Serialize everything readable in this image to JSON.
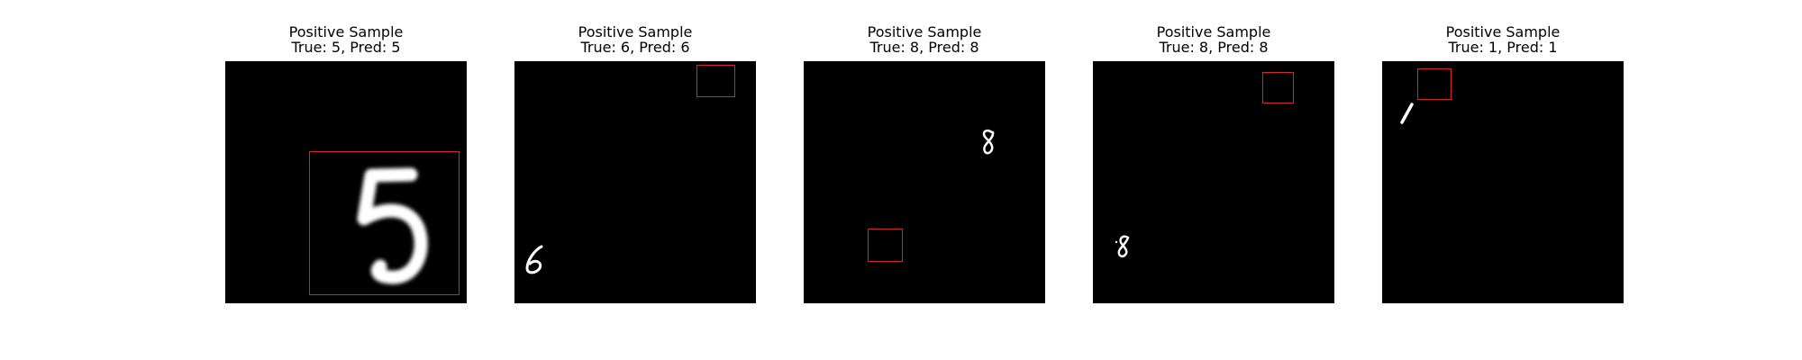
{
  "panels": [
    {
      "title": "Positive Sample",
      "subtitle": "True: 5, Pred: 5",
      "digit": "5"
    },
    {
      "title": "Positive Sample",
      "subtitle": "True: 6, Pred: 6",
      "digit": "6"
    },
    {
      "title": "Positive Sample",
      "subtitle": "True: 8, Pred: 8",
      "digit": "8"
    },
    {
      "title": "Positive Sample",
      "subtitle": "True: 8, Pred: 8",
      "digit": "8"
    },
    {
      "title": "Positive Sample",
      "subtitle": "True: 1, Pred: 1",
      "digit": "1"
    }
  ],
  "colors": {
    "background": "#000000",
    "digit": "#ffffff",
    "box": "#d62728"
  }
}
